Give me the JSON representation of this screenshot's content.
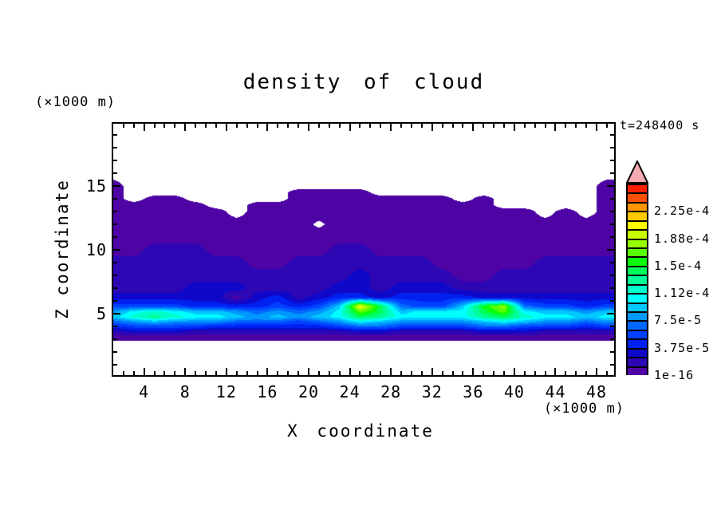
{
  "title": "density of cloud",
  "time_label": "t=248400 s",
  "y_axis": {
    "label": "Z coordinate",
    "unit": "(×1000 m)",
    "major_ticks": [
      5,
      10,
      15
    ],
    "minor_from": 1,
    "minor_to": 19,
    "minor_step": 1
  },
  "x_axis": {
    "label": "X coordinate",
    "unit": "(×1000 m)",
    "major_ticks": [
      4,
      8,
      12,
      16,
      20,
      24,
      28,
      32,
      36,
      40,
      44,
      48
    ],
    "minor_from": 1,
    "minor_to": 49,
    "minor_step": 1
  },
  "colorbar": {
    "labels_bottom_to_top": [
      "1e-16",
      "3.75e-5",
      "7.5e-5",
      "1.12e-4",
      "1.5e-4",
      "1.88e-4",
      "2.25e-4"
    ],
    "label_every_n_cells": 3,
    "cell_colors_bottom_to_top": [
      "#4E03A5",
      "#2D07B4",
      "#1008C8",
      "#0020F0",
      "#0040FF",
      "#0068FF",
      "#0098FF",
      "#00C8FF",
      "#00FFFF",
      "#00FFC8",
      "#00FF96",
      "#00FF5A",
      "#0AFF0A",
      "#5AFF00",
      "#96FF00",
      "#C8FF00",
      "#FFFF00",
      "#FFC800",
      "#FF9600",
      "#FF5000",
      "#FF1E00"
    ],
    "overflow_arrow_color": "#F5AAB4",
    "no_data_color": "#FFFFFF"
  },
  "chart_data": {
    "type": "heatmap",
    "title": "density of cloud",
    "xlabel": "X coordinate (×1000 m)",
    "ylabel": "Z coordinate (×1000 m)",
    "time": "t=248400 s",
    "x_range": [
      1.0,
      49.7
    ],
    "z_range": [
      0.19,
      19.88
    ],
    "level_unit": 1.25e-05,
    "level_floor": 1e-16,
    "note": "grid levels are contour-level indices; physical density ≈ index × level_unit; 0 = below 1e-16 (white)",
    "grid": {
      "x": [
        1,
        3,
        5,
        7,
        9,
        11,
        13,
        15,
        17,
        19,
        21,
        23,
        25,
        27,
        29,
        31,
        33,
        35,
        37,
        39,
        41,
        43,
        45,
        47,
        49
      ],
      "z": [
        16,
        15,
        14.5,
        14,
        13.5,
        13,
        12,
        11,
        10,
        9,
        8,
        7,
        6.3,
        5.6,
        5.15,
        4.75,
        4.4,
        4.0,
        3.6,
        3.2,
        3.0,
        2.8
      ],
      "levels": [
        [
          0,
          0,
          0,
          0,
          0,
          0,
          0,
          0,
          0,
          0,
          0,
          0,
          0,
          0,
          0,
          0,
          0,
          0,
          0,
          0,
          0,
          0,
          0,
          0,
          0
        ],
        [
          1,
          0,
          0,
          0,
          0,
          0,
          0,
          0,
          0,
          0,
          0,
          0,
          0,
          0,
          0,
          0,
          0,
          0,
          0,
          0,
          0,
          0,
          0,
          0,
          1
        ],
        [
          1,
          0,
          0,
          0,
          0,
          0,
          0,
          0,
          0,
          1,
          1,
          1,
          1,
          0,
          0,
          0,
          0,
          0,
          0,
          0,
          0,
          0,
          0,
          0,
          1
        ],
        [
          1,
          0,
          1,
          1,
          0,
          0,
          0,
          0,
          0,
          1,
          1,
          1,
          1,
          1,
          1,
          1,
          1,
          0,
          1,
          0,
          0,
          0,
          0,
          0,
          1
        ],
        [
          1,
          1,
          1,
          1,
          1,
          0,
          0,
          1,
          1,
          1,
          1,
          1,
          1,
          1,
          1,
          1,
          1,
          1,
          1,
          0,
          0,
          0,
          0,
          0,
          1
        ],
        [
          1,
          1,
          1,
          1,
          1,
          1,
          0,
          1,
          1,
          1,
          1,
          1,
          1,
          1,
          1,
          1,
          1,
          1,
          1,
          1,
          1,
          0,
          1,
          0,
          1
        ],
        [
          1,
          1,
          1,
          1,
          1,
          1,
          1,
          1,
          1,
          1,
          0.3,
          1,
          1,
          1,
          1,
          1,
          1,
          1,
          1,
          1,
          1,
          1,
          1,
          1,
          1
        ],
        [
          1,
          1,
          1,
          1,
          1,
          1,
          1,
          1,
          1,
          1,
          1,
          1,
          1,
          1,
          1,
          1,
          1,
          1,
          1,
          1,
          1,
          1,
          1,
          1,
          1
        ],
        [
          1,
          1,
          2,
          2,
          2,
          1,
          1,
          1,
          1,
          1,
          1,
          2,
          2,
          1,
          1,
          1,
          1,
          1,
          1,
          1,
          1,
          1,
          1,
          1,
          1
        ],
        [
          2,
          2,
          2,
          2,
          2,
          2,
          2,
          1,
          1,
          2,
          2,
          2,
          2,
          2,
          2,
          2,
          1,
          1,
          1,
          1,
          1,
          2,
          2,
          2,
          2
        ],
        [
          2,
          2,
          2,
          2,
          2,
          2,
          2,
          2,
          2,
          2,
          2,
          2,
          3,
          2,
          2,
          2,
          2,
          1,
          1,
          2,
          2,
          2,
          2,
          2,
          2
        ],
        [
          2,
          2,
          2,
          2,
          3,
          3,
          3,
          2,
          2,
          2,
          2,
          3,
          3,
          2,
          3,
          3,
          3,
          2,
          2,
          2,
          2,
          2,
          2,
          2,
          2
        ],
        [
          3,
          3,
          3,
          3,
          3,
          3,
          1,
          3,
          4,
          2,
          3,
          4,
          4,
          3,
          4,
          4,
          4,
          4,
          3,
          3,
          3,
          3,
          3,
          3,
          3
        ],
        [
          5,
          5,
          5,
          5,
          4,
          4,
          4,
          4,
          5,
          4,
          5,
          8,
          17,
          12,
          6,
          5,
          5,
          8,
          13,
          15,
          6,
          5,
          5,
          4,
          5
        ],
        [
          7,
          9,
          10,
          9,
          8,
          8,
          7,
          6,
          7,
          6,
          7,
          9,
          14,
          12,
          8,
          9,
          9,
          9,
          12,
          14,
          9,
          8,
          8,
          7,
          8
        ],
        [
          8,
          10,
          11,
          10,
          9,
          9,
          8,
          7,
          8,
          7,
          8,
          9,
          12,
          11,
          9,
          9,
          9,
          9,
          11,
          12,
          10,
          9,
          9,
          8,
          9
        ],
        [
          6,
          7,
          8,
          7,
          7,
          7,
          6,
          6,
          6,
          5,
          6,
          7,
          9,
          8,
          7,
          7,
          7,
          7,
          8,
          9,
          8,
          7,
          7,
          6,
          7
        ],
        [
          4,
          5,
          5,
          5,
          5,
          4,
          4,
          4,
          4,
          4,
          4,
          5,
          6,
          6,
          5,
          5,
          5,
          5,
          6,
          6,
          5,
          5,
          5,
          4,
          5
        ],
        [
          2,
          3,
          3,
          3,
          2,
          2,
          2,
          2,
          2,
          2,
          2,
          2,
          3,
          3,
          2,
          2,
          2,
          2,
          3,
          3,
          3,
          2,
          2,
          2,
          2
        ],
        [
          1,
          1,
          1,
          1,
          1,
          1,
          1,
          1,
          1,
          1,
          1,
          1,
          1,
          1,
          1,
          1,
          1,
          1,
          1,
          1,
          1,
          1,
          1,
          1,
          1
        ],
        [
          1,
          1,
          1,
          1,
          1,
          1,
          1,
          1,
          1,
          1,
          1,
          1,
          1,
          1,
          1,
          1,
          1,
          1,
          1,
          1,
          1,
          1,
          1,
          1,
          1
        ],
        [
          0,
          0,
          0,
          0,
          0,
          0,
          0,
          0,
          0,
          0,
          0,
          0,
          0,
          0,
          0,
          0,
          0,
          0,
          0,
          0,
          0,
          0,
          0,
          0,
          0
        ]
      ]
    }
  }
}
